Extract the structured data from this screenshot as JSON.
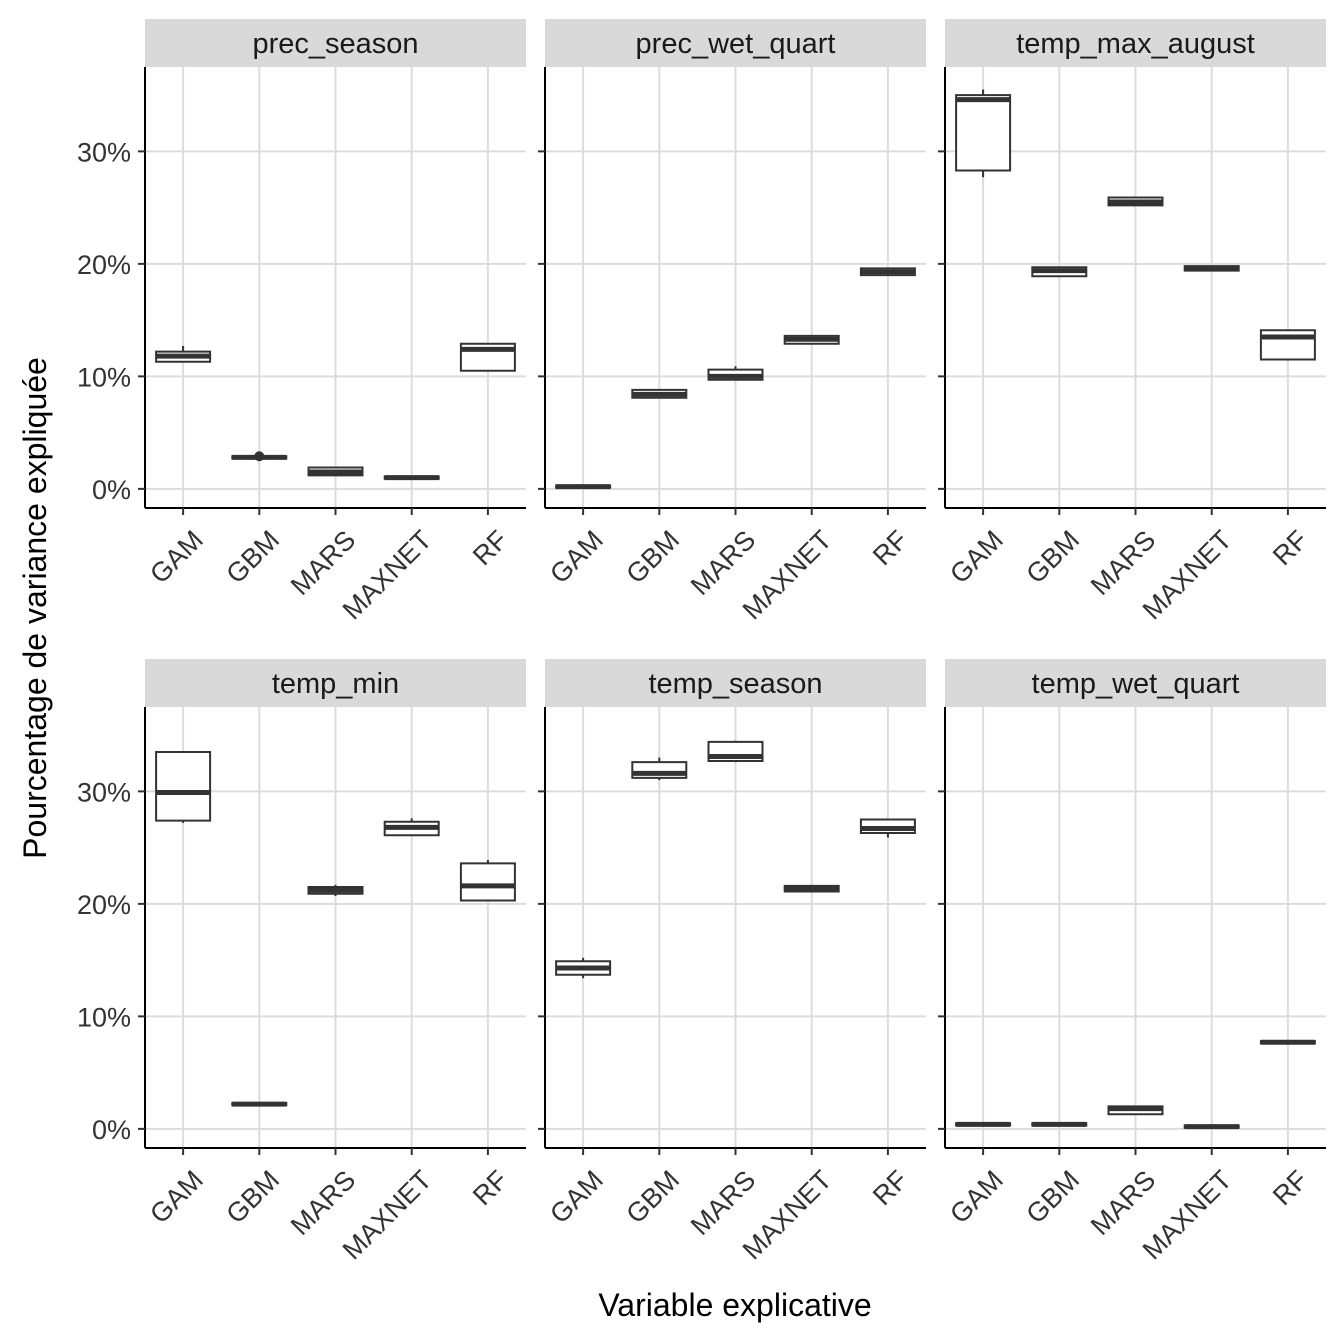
{
  "chart_data": {
    "type": "boxplot",
    "facet_layout": "3 columns x 2 rows",
    "xlabel": "Variable explicative",
    "ylabel": "Pourcentage de variance expliquée",
    "categories": [
      "GAM",
      "GBM",
      "MARS",
      "MAXNET",
      "RF"
    ],
    "y_ticks": [
      0,
      10,
      20,
      30
    ],
    "y_tick_labels": [
      "0%",
      "10%",
      "20%",
      "30%"
    ],
    "ylim": [
      -1.7,
      37.5
    ],
    "grid": true,
    "panels": [
      {
        "title": "prec_season",
        "boxes": [
          {
            "category": "GAM",
            "min": 11.3,
            "q1": 11.3,
            "median": 11.8,
            "q3": 12.2,
            "max": 12.7
          },
          {
            "category": "GBM",
            "min": 2.7,
            "q1": 2.7,
            "median": 2.8,
            "q3": 2.9,
            "max": 2.9,
            "outliers": [
              2.9
            ]
          },
          {
            "category": "MARS",
            "min": 1.2,
            "q1": 1.2,
            "median": 1.5,
            "q3": 1.9,
            "max": 1.9
          },
          {
            "category": "MAXNET",
            "min": 0.9,
            "q1": 0.9,
            "median": 1.0,
            "q3": 1.1,
            "max": 1.1
          },
          {
            "category": "RF",
            "min": 10.5,
            "q1": 10.5,
            "median": 12.4,
            "q3": 12.9,
            "max": 12.9
          }
        ]
      },
      {
        "title": "prec_wet_quart",
        "boxes": [
          {
            "category": "GAM",
            "min": 0.1,
            "q1": 0.1,
            "median": 0.2,
            "q3": 0.3,
            "max": 0.3
          },
          {
            "category": "GBM",
            "min": 8.1,
            "q1": 8.1,
            "median": 8.4,
            "q3": 8.8,
            "max": 8.8
          },
          {
            "category": "MARS",
            "min": 9.7,
            "q1": 9.7,
            "median": 10.0,
            "q3": 10.6,
            "max": 10.9
          },
          {
            "category": "MAXNET",
            "min": 12.9,
            "q1": 12.9,
            "median": 13.3,
            "q3": 13.6,
            "max": 13.6
          },
          {
            "category": "RF",
            "min": 19.0,
            "q1": 19.0,
            "median": 19.3,
            "q3": 19.6,
            "max": 19.6
          }
        ]
      },
      {
        "title": "temp_max_august",
        "boxes": [
          {
            "category": "GAM",
            "min": 27.7,
            "q1": 28.3,
            "median": 34.6,
            "q3": 35.0,
            "max": 35.5
          },
          {
            "category": "GBM",
            "min": 18.9,
            "q1": 18.9,
            "median": 19.4,
            "q3": 19.7,
            "max": 19.7
          },
          {
            "category": "MARS",
            "min": 25.2,
            "q1": 25.2,
            "median": 25.5,
            "q3": 25.9,
            "max": 25.9
          },
          {
            "category": "MAXNET",
            "min": 19.4,
            "q1": 19.4,
            "median": 19.6,
            "q3": 19.8,
            "max": 19.8
          },
          {
            "category": "RF",
            "min": 11.5,
            "q1": 11.5,
            "median": 13.5,
            "q3": 14.1,
            "max": 14.1
          }
        ]
      },
      {
        "title": "temp_min",
        "boxes": [
          {
            "category": "GAM",
            "min": 27.2,
            "q1": 27.4,
            "median": 29.9,
            "q3": 33.5,
            "max": 33.5
          },
          {
            "category": "GBM",
            "min": 2.1,
            "q1": 2.1,
            "median": 2.2,
            "q3": 2.3,
            "max": 2.3
          },
          {
            "category": "MARS",
            "min": 20.7,
            "q1": 20.9,
            "median": 21.2,
            "q3": 21.5,
            "max": 21.7
          },
          {
            "category": "MAXNET",
            "min": 26.1,
            "q1": 26.1,
            "median": 26.8,
            "q3": 27.3,
            "max": 27.6
          },
          {
            "category": "RF",
            "min": 20.3,
            "q1": 20.3,
            "median": 21.6,
            "q3": 23.6,
            "max": 23.9
          }
        ]
      },
      {
        "title": "temp_season",
        "boxes": [
          {
            "category": "GAM",
            "min": 13.4,
            "q1": 13.7,
            "median": 14.3,
            "q3": 14.9,
            "max": 15.2
          },
          {
            "category": "GBM",
            "min": 31.0,
            "q1": 31.2,
            "median": 31.6,
            "q3": 32.6,
            "max": 33.0
          },
          {
            "category": "MARS",
            "min": 32.6,
            "q1": 32.7,
            "median": 33.1,
            "q3": 34.4,
            "max": 34.5
          },
          {
            "category": "MAXNET",
            "min": 21.1,
            "q1": 21.1,
            "median": 21.4,
            "q3": 21.6,
            "max": 21.6
          },
          {
            "category": "RF",
            "min": 25.9,
            "q1": 26.3,
            "median": 26.7,
            "q3": 27.5,
            "max": 27.5
          }
        ]
      },
      {
        "title": "temp_wet_quart",
        "boxes": [
          {
            "category": "GAM",
            "min": 0.3,
            "q1": 0.3,
            "median": 0.4,
            "q3": 0.5,
            "max": 0.5
          },
          {
            "category": "GBM",
            "min": 0.3,
            "q1": 0.3,
            "median": 0.4,
            "q3": 0.5,
            "max": 0.5
          },
          {
            "category": "MARS",
            "min": 1.3,
            "q1": 1.3,
            "median": 1.8,
            "q3": 2.0,
            "max": 2.0
          },
          {
            "category": "MAXNET",
            "min": 0.1,
            "q1": 0.1,
            "median": 0.2,
            "q3": 0.3,
            "max": 0.3
          },
          {
            "category": "RF",
            "min": 7.6,
            "q1": 7.6,
            "median": 7.7,
            "q3": 7.8,
            "max": 7.8
          }
        ]
      }
    ]
  }
}
